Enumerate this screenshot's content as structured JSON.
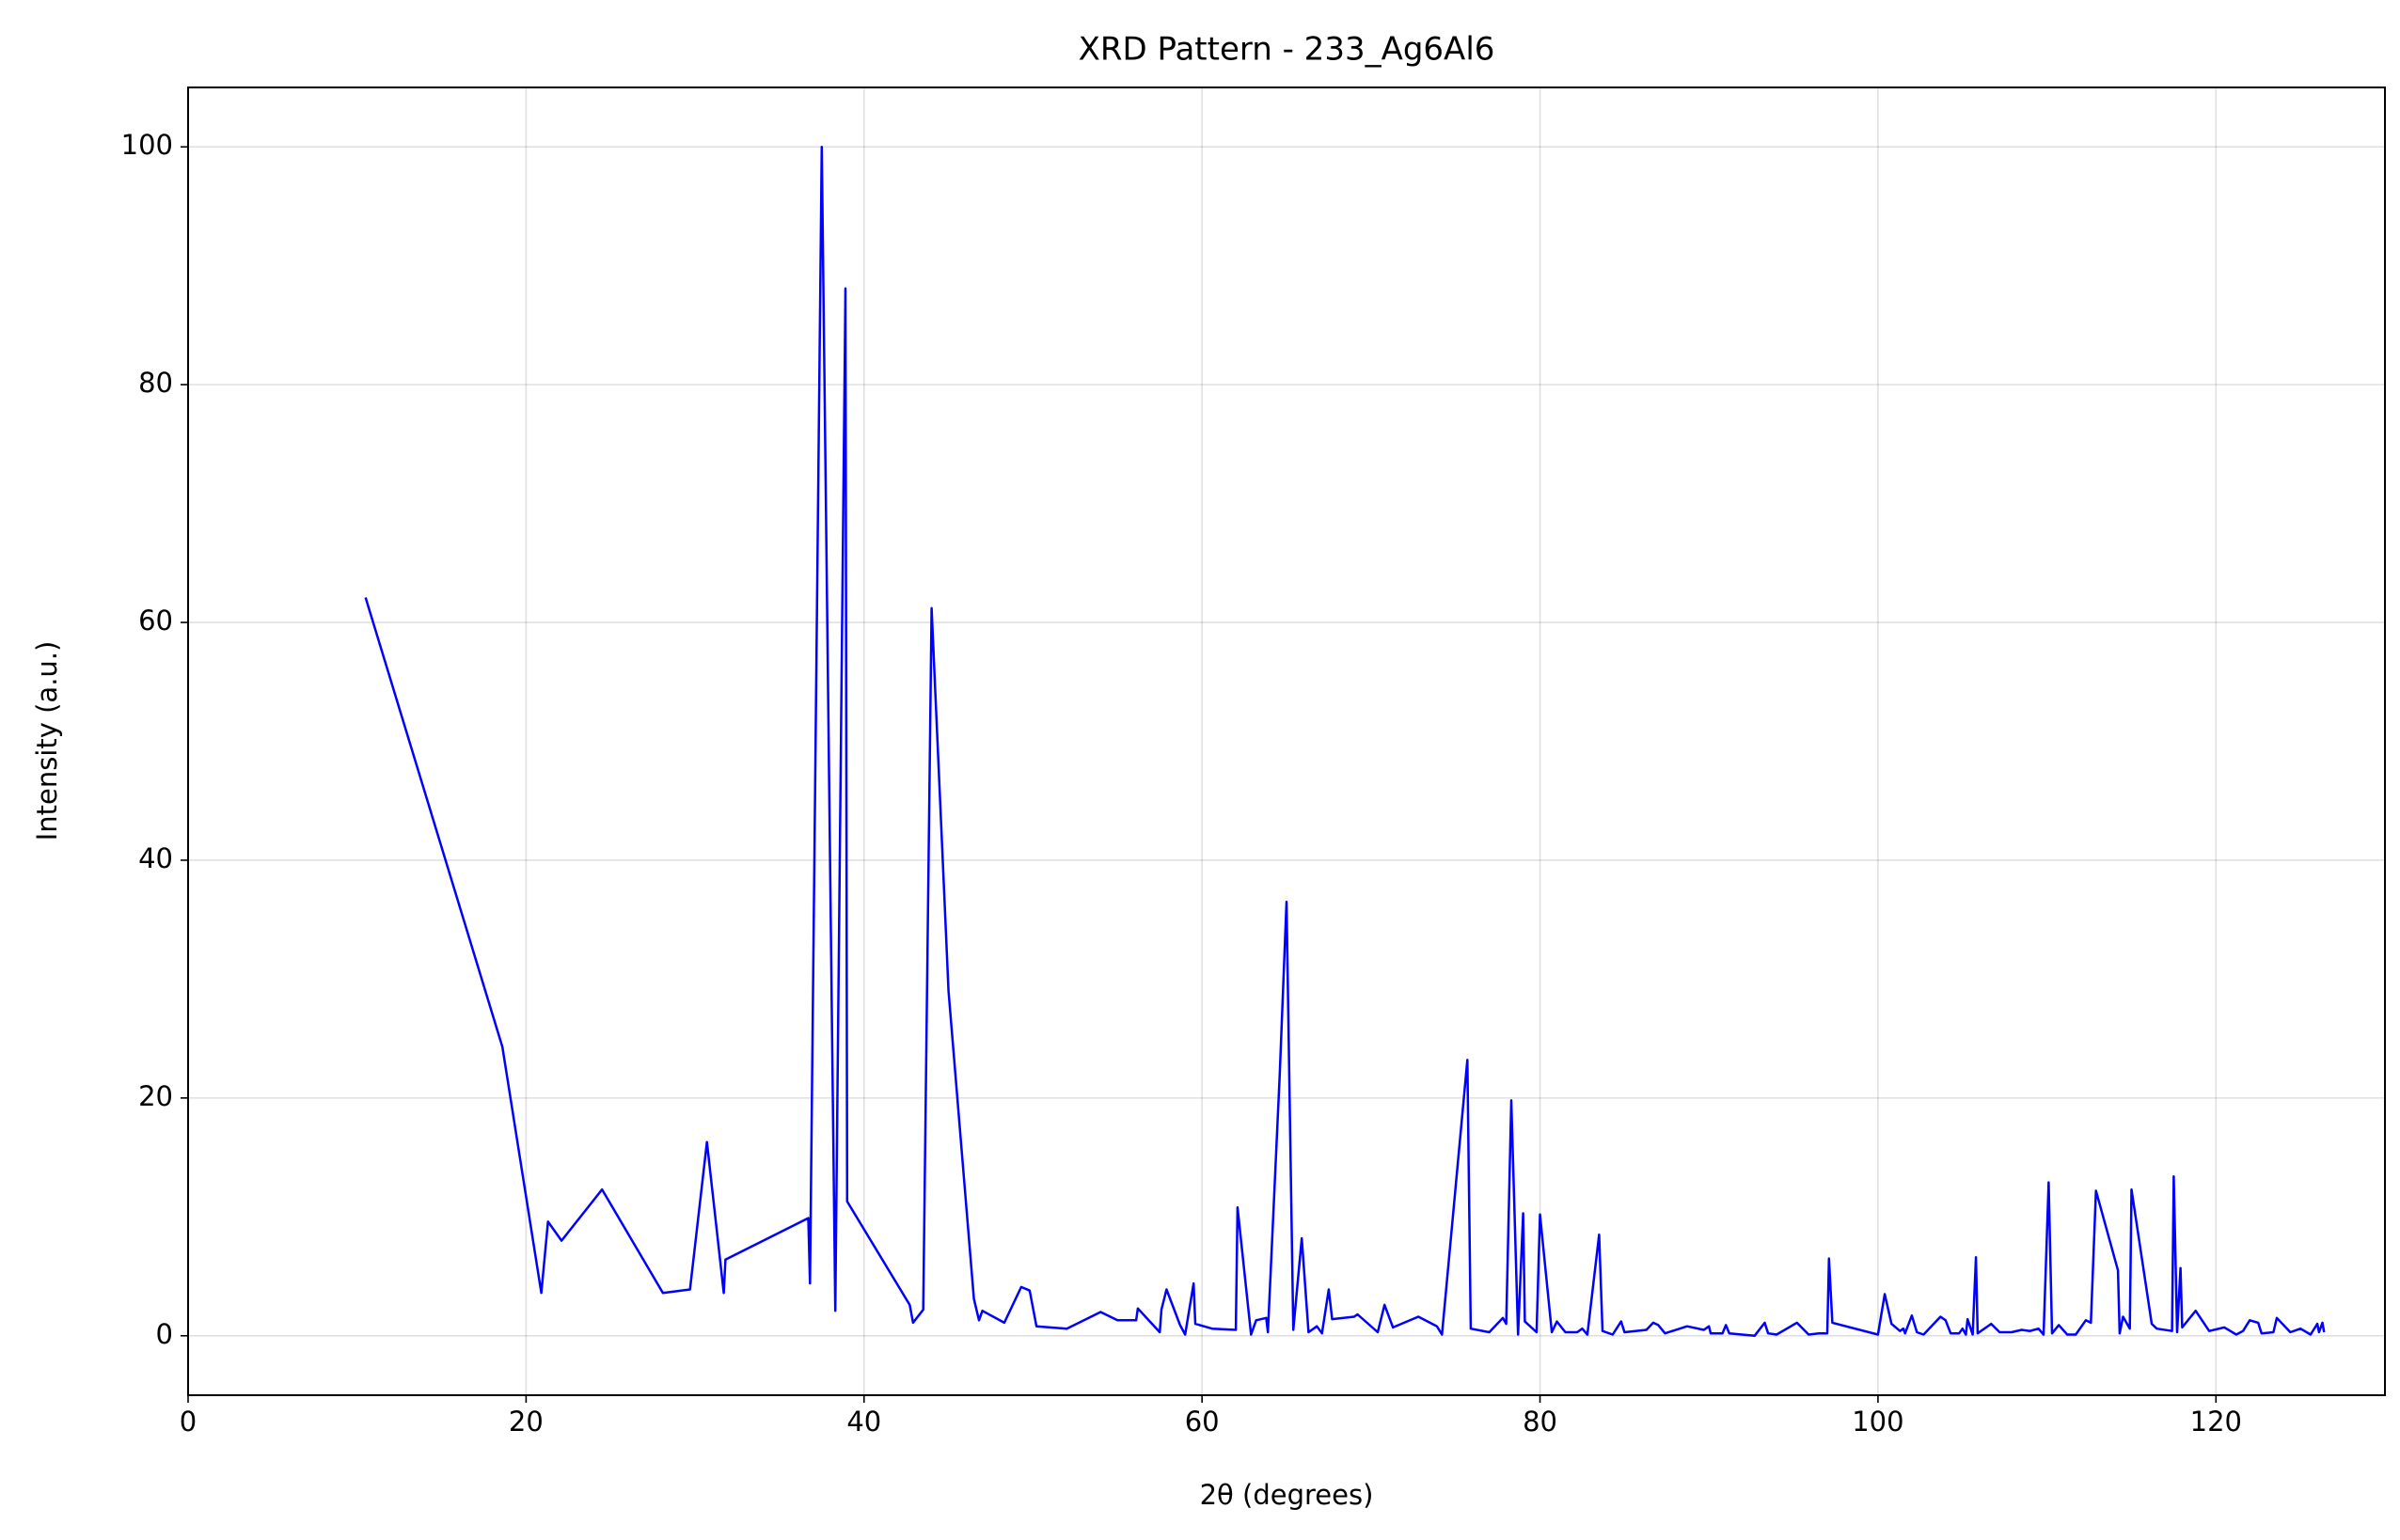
{
  "chart_data": {
    "type": "line",
    "title": "XRD Pattern - 233_Ag6Al6",
    "xlabel": "2θ (degrees)",
    "ylabel": "Intensity (a.u.)",
    "x": [
      10.5,
      18.6,
      20.9,
      21.3,
      22.1,
      24.5,
      28.1,
      29.7,
      30.7,
      31.7,
      31.8,
      36.7,
      36.8,
      37.5,
      38.3,
      38.9,
      39.0,
      42.7,
      42.9,
      43.5,
      44.0,
      45.0,
      46.5,
      46.8,
      47.0,
      48.3,
      49.3,
      49.8,
      50.2,
      52.0,
      54.0,
      55.0,
      56.1,
      56.2,
      57.5,
      57.6,
      57.9,
      58.7,
      59.0,
      59.5,
      59.6,
      60.6,
      62.0,
      62.1,
      62.9,
      63.2,
      63.8,
      63.9,
      64.6,
      65.0,
      65.4,
      65.9,
      66.3,
      66.8,
      67.1,
      67.5,
      67.7,
      69.0,
      69.2,
      70.4,
      70.8,
      71.3,
      72.8,
      73.9,
      74.2,
      75.7,
      75.9,
      77.0,
      77.8,
      78.0,
      78.3,
      78.7,
      79.0,
      79.1,
      79.8,
      80.0,
      80.7,
      81.0,
      81.5,
      82.2,
      82.5,
      82.8,
      83.5,
      83.7,
      84.3,
      84.8,
      85.0,
      86.3,
      86.7,
      87.0,
      87.4,
      88.7,
      89.7,
      90.0,
      90.1,
      90.8,
      91.0,
      91.2,
      92.7,
      93.3,
      93.5,
      94.0,
      95.2,
      95.9,
      96.5,
      97.0,
      97.1,
      97.3,
      100.0,
      100.4,
      100.8,
      101.3,
      101.5,
      101.6,
      102.0,
      102.3,
      102.7,
      103.7,
      104.0,
      104.3,
      104.8,
      105.0,
      105.2,
      105.3,
      105.6,
      105.8,
      105.9,
      106.7,
      107.2,
      107.9,
      108.5,
      109.0,
      109.5,
      109.8,
      110.1,
      110.3,
      110.7,
      111.2,
      111.7,
      112.3,
      112.6,
      112.9,
      114.2,
      114.3,
      114.5,
      114.9,
      115.0,
      116.2,
      116.5,
      117.4,
      117.5,
      117.7,
      117.9,
      118.0,
      118.8,
      119.6,
      120.5,
      121.2,
      121.6,
      122.0,
      122.5,
      122.7,
      123.4,
      123.6,
      124.4,
      125.0,
      125.6,
      126.0,
      126.1,
      126.3,
      126.4
    ],
    "series": [
      {
        "color": "#0000ff",
        "values": [
          62.1,
          24.3,
          3.6,
          9.6,
          8.0,
          12.3,
          3.6,
          3.9,
          16.3,
          3.6,
          6.4,
          9.9,
          4.4,
          100,
          2.1,
          88.1,
          11.3,
          2.6,
          1.1,
          2.2,
          61.2,
          29,
          3.1,
          1.3,
          2.1,
          1.1,
          4.1,
          3.8,
          0.8,
          0.6,
          2.0,
          1.3,
          1.3,
          2.3,
          0.3,
          2.2,
          3.9,
          0.9,
          0.1,
          4.4,
          1.0,
          0.6,
          0.5,
          10.8,
          0.1,
          1.3,
          1.5,
          0.3,
          22,
          36.5,
          0.5,
          8.2,
          0.3,
          0.8,
          0.2,
          3.9,
          1.4,
          1.6,
          1.8,
          0.3,
          2.6,
          0.7,
          1.6,
          0.8,
          0.1,
          23.2,
          0.6,
          0.3,
          1.5,
          1.0,
          19.8,
          0.1,
          10.3,
          1.2,
          0.3,
          10.2,
          0.3,
          1.2,
          0.3,
          0.3,
          0.6,
          0.1,
          8.5,
          0.4,
          0.1,
          1.2,
          0.3,
          0.5,
          1.1,
          0.9,
          0.2,
          0.8,
          0.5,
          0.8,
          0.2,
          0.2,
          0.9,
          0.2,
          0.0,
          1.1,
          0.2,
          0.1,
          1.1,
          0.1,
          0.2,
          0.2,
          6.5,
          1.1,
          0.1,
          3.5,
          1.0,
          0.4,
          0.6,
          0.2,
          1.7,
          0.3,
          0.1,
          1.6,
          1.3,
          0.2,
          0.2,
          0.6,
          0.1,
          1.4,
          0.1,
          6.6,
          0.2,
          1.0,
          0.3,
          0.3,
          0.5,
          0.4,
          0.6,
          0.1,
          12.9,
          0.2,
          0.9,
          0.1,
          0.1,
          1.3,
          1.1,
          12.2,
          5.5,
          0.2,
          1.6,
          0.6,
          12.3,
          1.0,
          0.6,
          0.4,
          13.4,
          0.3,
          5.7,
          0.7,
          2.1,
          0.4,
          0.7,
          0.1,
          0.4,
          1.3,
          1.1,
          0.2,
          0.3,
          1.5,
          0.3,
          0.6,
          0.1,
          1.0,
          0.3,
          1.1,
          0.3
        ]
      }
    ],
    "xlim": [
      0,
      130
    ],
    "ylim": [
      -5,
      105
    ],
    "xticks": [
      0,
      20,
      40,
      60,
      80,
      100,
      120
    ],
    "yticks": [
      0,
      20,
      40,
      60,
      80,
      100
    ],
    "grid": true
  }
}
